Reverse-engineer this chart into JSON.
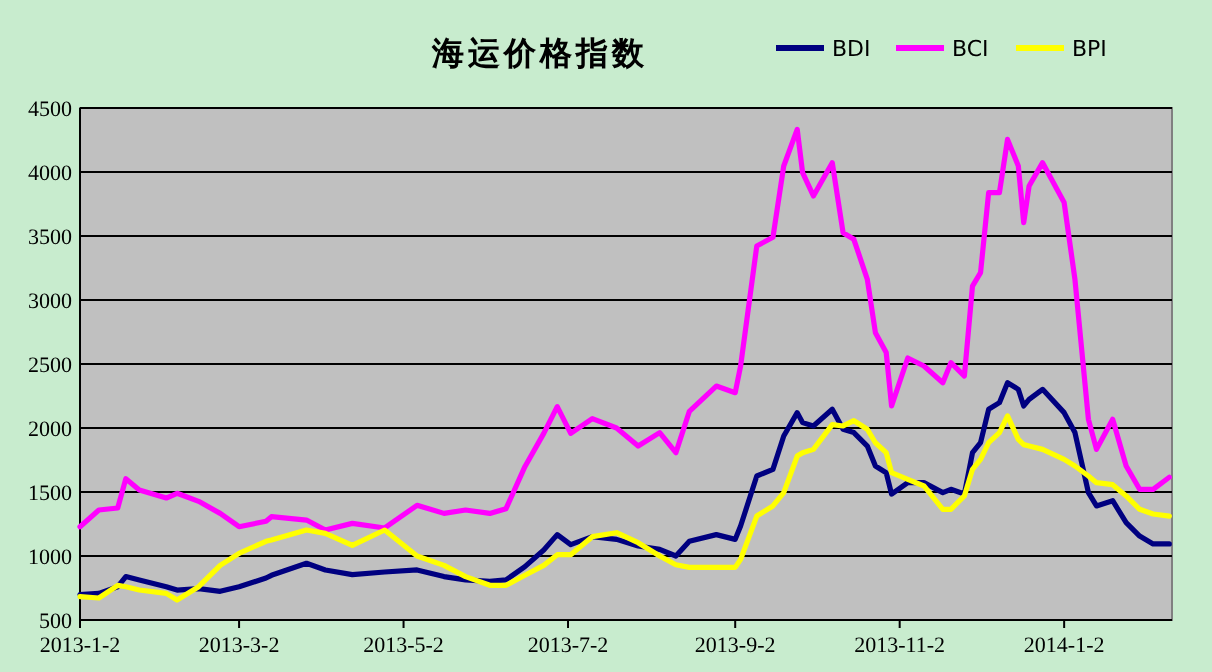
{
  "chart_data": {
    "type": "line",
    "title": "海运价格指数",
    "x": [
      "2013-01-02",
      "2013-01-09",
      "2013-01-16",
      "2013-01-19",
      "2013-01-24",
      "2013-02-03",
      "2013-02-07",
      "2013-02-15",
      "2013-02-23",
      "2013-03-02",
      "2013-03-12",
      "2013-03-14",
      "2013-03-27",
      "2013-04-03",
      "2013-04-13",
      "2013-04-25",
      "2013-05-07",
      "2013-05-17",
      "2013-05-25",
      "2013-06-03",
      "2013-06-09",
      "2013-06-16",
      "2013-06-23",
      "2013-06-28",
      "2013-07-03",
      "2013-07-11",
      "2013-07-20",
      "2013-07-28",
      "2013-08-05",
      "2013-08-11",
      "2013-08-16",
      "2013-08-26",
      "2013-09-02",
      "2013-09-04",
      "2013-09-10",
      "2013-09-16",
      "2013-09-20",
      "2013-09-25",
      "2013-09-27",
      "2013-10-01",
      "2013-10-08",
      "2013-10-12",
      "2013-10-16",
      "2013-10-21",
      "2013-10-24",
      "2013-10-28",
      "2013-10-30",
      "2013-11-05",
      "2013-11-11",
      "2013-11-18",
      "2013-11-21",
      "2013-11-26",
      "2013-11-29",
      "2013-12-02",
      "2013-12-05",
      "2013-12-09",
      "2013-12-12",
      "2013-12-16",
      "2013-12-18",
      "2013-12-20",
      "2013-12-25",
      "2014-01-02",
      "2014-01-06",
      "2014-01-11",
      "2014-01-14",
      "2014-01-20",
      "2014-01-25",
      "2014-01-30",
      "2014-02-04",
      "2014-02-10"
    ],
    "series": [
      {
        "name": "BDI",
        "color": "#000080",
        "values": [
          698,
          708,
          760,
          839,
          813,
          760,
          734,
          745,
          724,
          760,
          828,
          849,
          943,
          891,
          854,
          875,
          891,
          839,
          813,
          802,
          813,
          917,
          1047,
          1167,
          1089,
          1151,
          1130,
          1078,
          1052,
          1000,
          1115,
          1167,
          1130,
          1234,
          1625,
          1677,
          1938,
          2120,
          2042,
          2016,
          2146,
          1990,
          1964,
          1859,
          1703,
          1651,
          1484,
          1573,
          1573,
          1495,
          1521,
          1484,
          1807,
          1885,
          2146,
          2198,
          2354,
          2302,
          2172,
          2224,
          2302,
          2120,
          1964,
          1495,
          1391,
          1432,
          1260,
          1156,
          1094,
          1094
        ]
      },
      {
        "name": "BCI",
        "color": "#ff00ff",
        "values": [
          1229,
          1359,
          1375,
          1604,
          1515,
          1453,
          1490,
          1427,
          1333,
          1229,
          1271,
          1307,
          1281,
          1203,
          1255,
          1219,
          1396,
          1333,
          1359,
          1333,
          1370,
          1698,
          1958,
          2167,
          1958,
          2073,
          2000,
          1859,
          1964,
          1807,
          2130,
          2328,
          2276,
          2484,
          3422,
          3490,
          4047,
          4333,
          3995,
          3813,
          4073,
          3526,
          3474,
          3161,
          2745,
          2589,
          2172,
          2547,
          2484,
          2354,
          2510,
          2406,
          3109,
          3214,
          3839,
          3839,
          4255,
          4047,
          3604,
          3891,
          4073,
          3761,
          3161,
          2068,
          1833,
          2068,
          1703,
          1521,
          1521,
          1615
        ]
      },
      {
        "name": "BPI",
        "color": "#ffff00",
        "values": [
          682,
          672,
          771,
          760,
          734,
          708,
          656,
          760,
          927,
          1021,
          1115,
          1125,
          1203,
          1177,
          1083,
          1203,
          1000,
          927,
          839,
          771,
          771,
          849,
          927,
          1010,
          1010,
          1151,
          1182,
          1104,
          1000,
          932,
          911,
          911,
          911,
          974,
          1312,
          1391,
          1495,
          1781,
          1807,
          1833,
          2026,
          2016,
          2057,
          1990,
          1885,
          1807,
          1651,
          1599,
          1547,
          1365,
          1365,
          1469,
          1677,
          1755,
          1885,
          1964,
          2094,
          1911,
          1870,
          1859,
          1833,
          1755,
          1703,
          1625,
          1573,
          1557,
          1469,
          1365,
          1328,
          1312
        ]
      }
    ],
    "xlim": [
      "2013-01-02",
      "2014-02-11"
    ],
    "xticks": [
      {
        "value": "2013-01-02",
        "label": "2013-1-2"
      },
      {
        "value": "2013-03-02",
        "label": "2013-3-2"
      },
      {
        "value": "2013-05-02",
        "label": "2013-5-2"
      },
      {
        "value": "2013-07-02",
        "label": "2013-7-2"
      },
      {
        "value": "2013-09-02",
        "label": "2013-9-2"
      },
      {
        "value": "2013-11-02",
        "label": "2013-11-2"
      },
      {
        "value": "2014-01-02",
        "label": "2014-1-2"
      }
    ],
    "ylim": [
      500,
      4500
    ],
    "yticks": [
      500,
      1000,
      1500,
      2000,
      2500,
      3000,
      3500,
      4000,
      4500
    ],
    "grid": "y",
    "legend": "top right",
    "marker": "none",
    "line_style": "solid"
  }
}
